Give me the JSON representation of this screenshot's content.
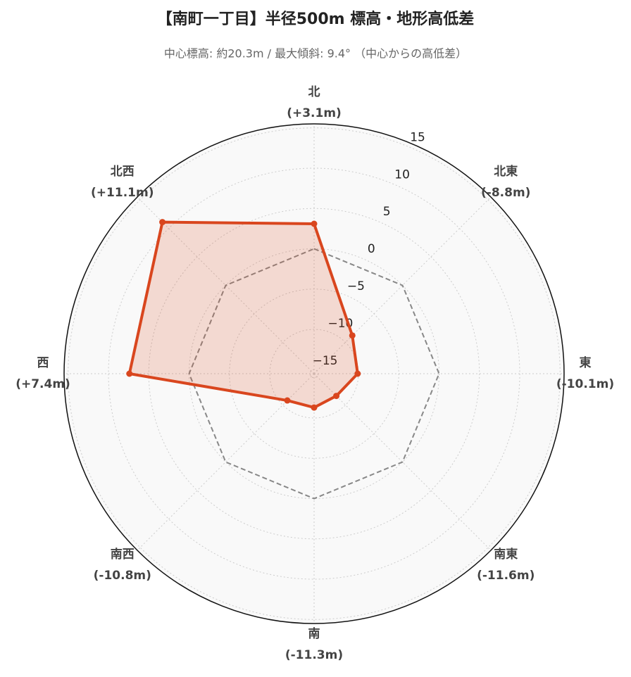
{
  "chart_data": {
    "type": "radar",
    "title": "【南町一丁目】半径500m 標高・地形高低差",
    "subtitle": "中心標高: 約20.3m / 最大傾斜: 9.4° （中心からの高低差）",
    "categories": [
      "北",
      "北東",
      "東",
      "南東",
      "南",
      "南西",
      "西",
      "北西"
    ],
    "values": [
      3.1,
      -8.8,
      -10.1,
      -11.6,
      -11.3,
      -10.8,
      7.4,
      11.1
    ],
    "value_labels": [
      "(+3.1m)",
      "(-8.8m)",
      "(-10.1m)",
      "(-11.6m)",
      "(-11.3m)",
      "(-10.8m)",
      "(+7.4m)",
      "(+11.1m)"
    ],
    "color": "#d9461e",
    "reference_value": 0,
    "rlim": [
      -15.5,
      15.5
    ],
    "rticks": [
      {
        "value": -15,
        "label": "−15"
      },
      {
        "value": -10,
        "label": "−10"
      },
      {
        "value": -5,
        "label": "−5"
      },
      0,
      5,
      10,
      15
    ],
    "grid": true
  }
}
